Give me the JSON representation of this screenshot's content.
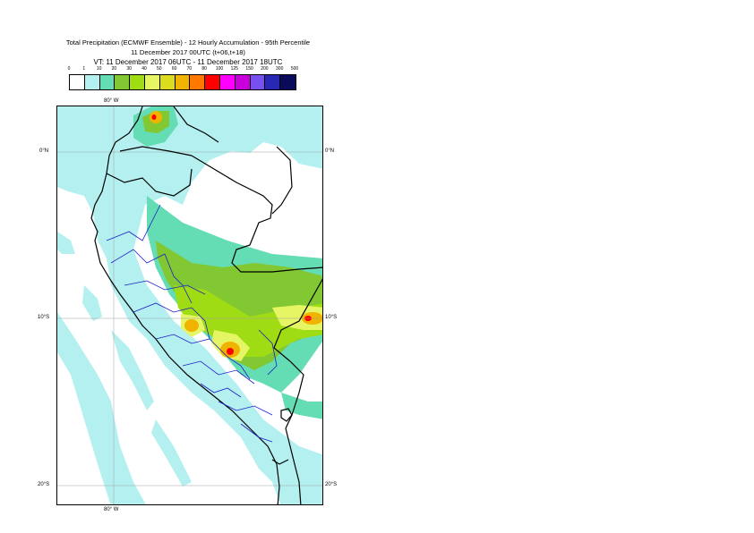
{
  "title": {
    "line1": "Total Precipitation (ECMWF Ensemble) - 12 Hourly Accumulation - 95th Percentile",
    "line2": "11 December 2017 00UTC (t+06,t+18)",
    "line3": "VT: 11 December 2017 06UTC - 11 December 2017 18UTC"
  },
  "legend": {
    "ticks": [
      "0",
      "1",
      "10",
      "20",
      "30",
      "40",
      "50",
      "60",
      "70",
      "80",
      "100",
      "125",
      "150",
      "200",
      "300",
      "500"
    ],
    "colors": [
      "#ffffff",
      "#b4f0f0",
      "#64dcb4",
      "#82c832",
      "#a0dc14",
      "#e6f564",
      "#dcdc1e",
      "#f0b400",
      "#ff7800",
      "#ff0000",
      "#ff00ff",
      "#c800dc",
      "#7850f0",
      "#2828b4",
      "#0a0a5a"
    ]
  },
  "map": {
    "lon_labels": {
      "top": "80° W",
      "bottom": "80° W"
    },
    "lat_labels": [
      {
        "left": "0°N",
        "right": "0°N"
      },
      {
        "left": "10°S",
        "right": "10°S"
      },
      {
        "left": "20°S",
        "right": "20°S"
      }
    ],
    "colors": {
      "light_cyan": "#b4f0f0",
      "teal": "#64dcb4",
      "green": "#82c832",
      "lime": "#a0dc14",
      "light_yellow": "#e6f564",
      "yellow": "#dcdc1e",
      "orange": "#f0b400",
      "dark_orange": "#ff7800",
      "red": "#ff0000",
      "coast": "#000000",
      "regions": "#1e1ec8",
      "grid": "#a0a0a0"
    }
  }
}
